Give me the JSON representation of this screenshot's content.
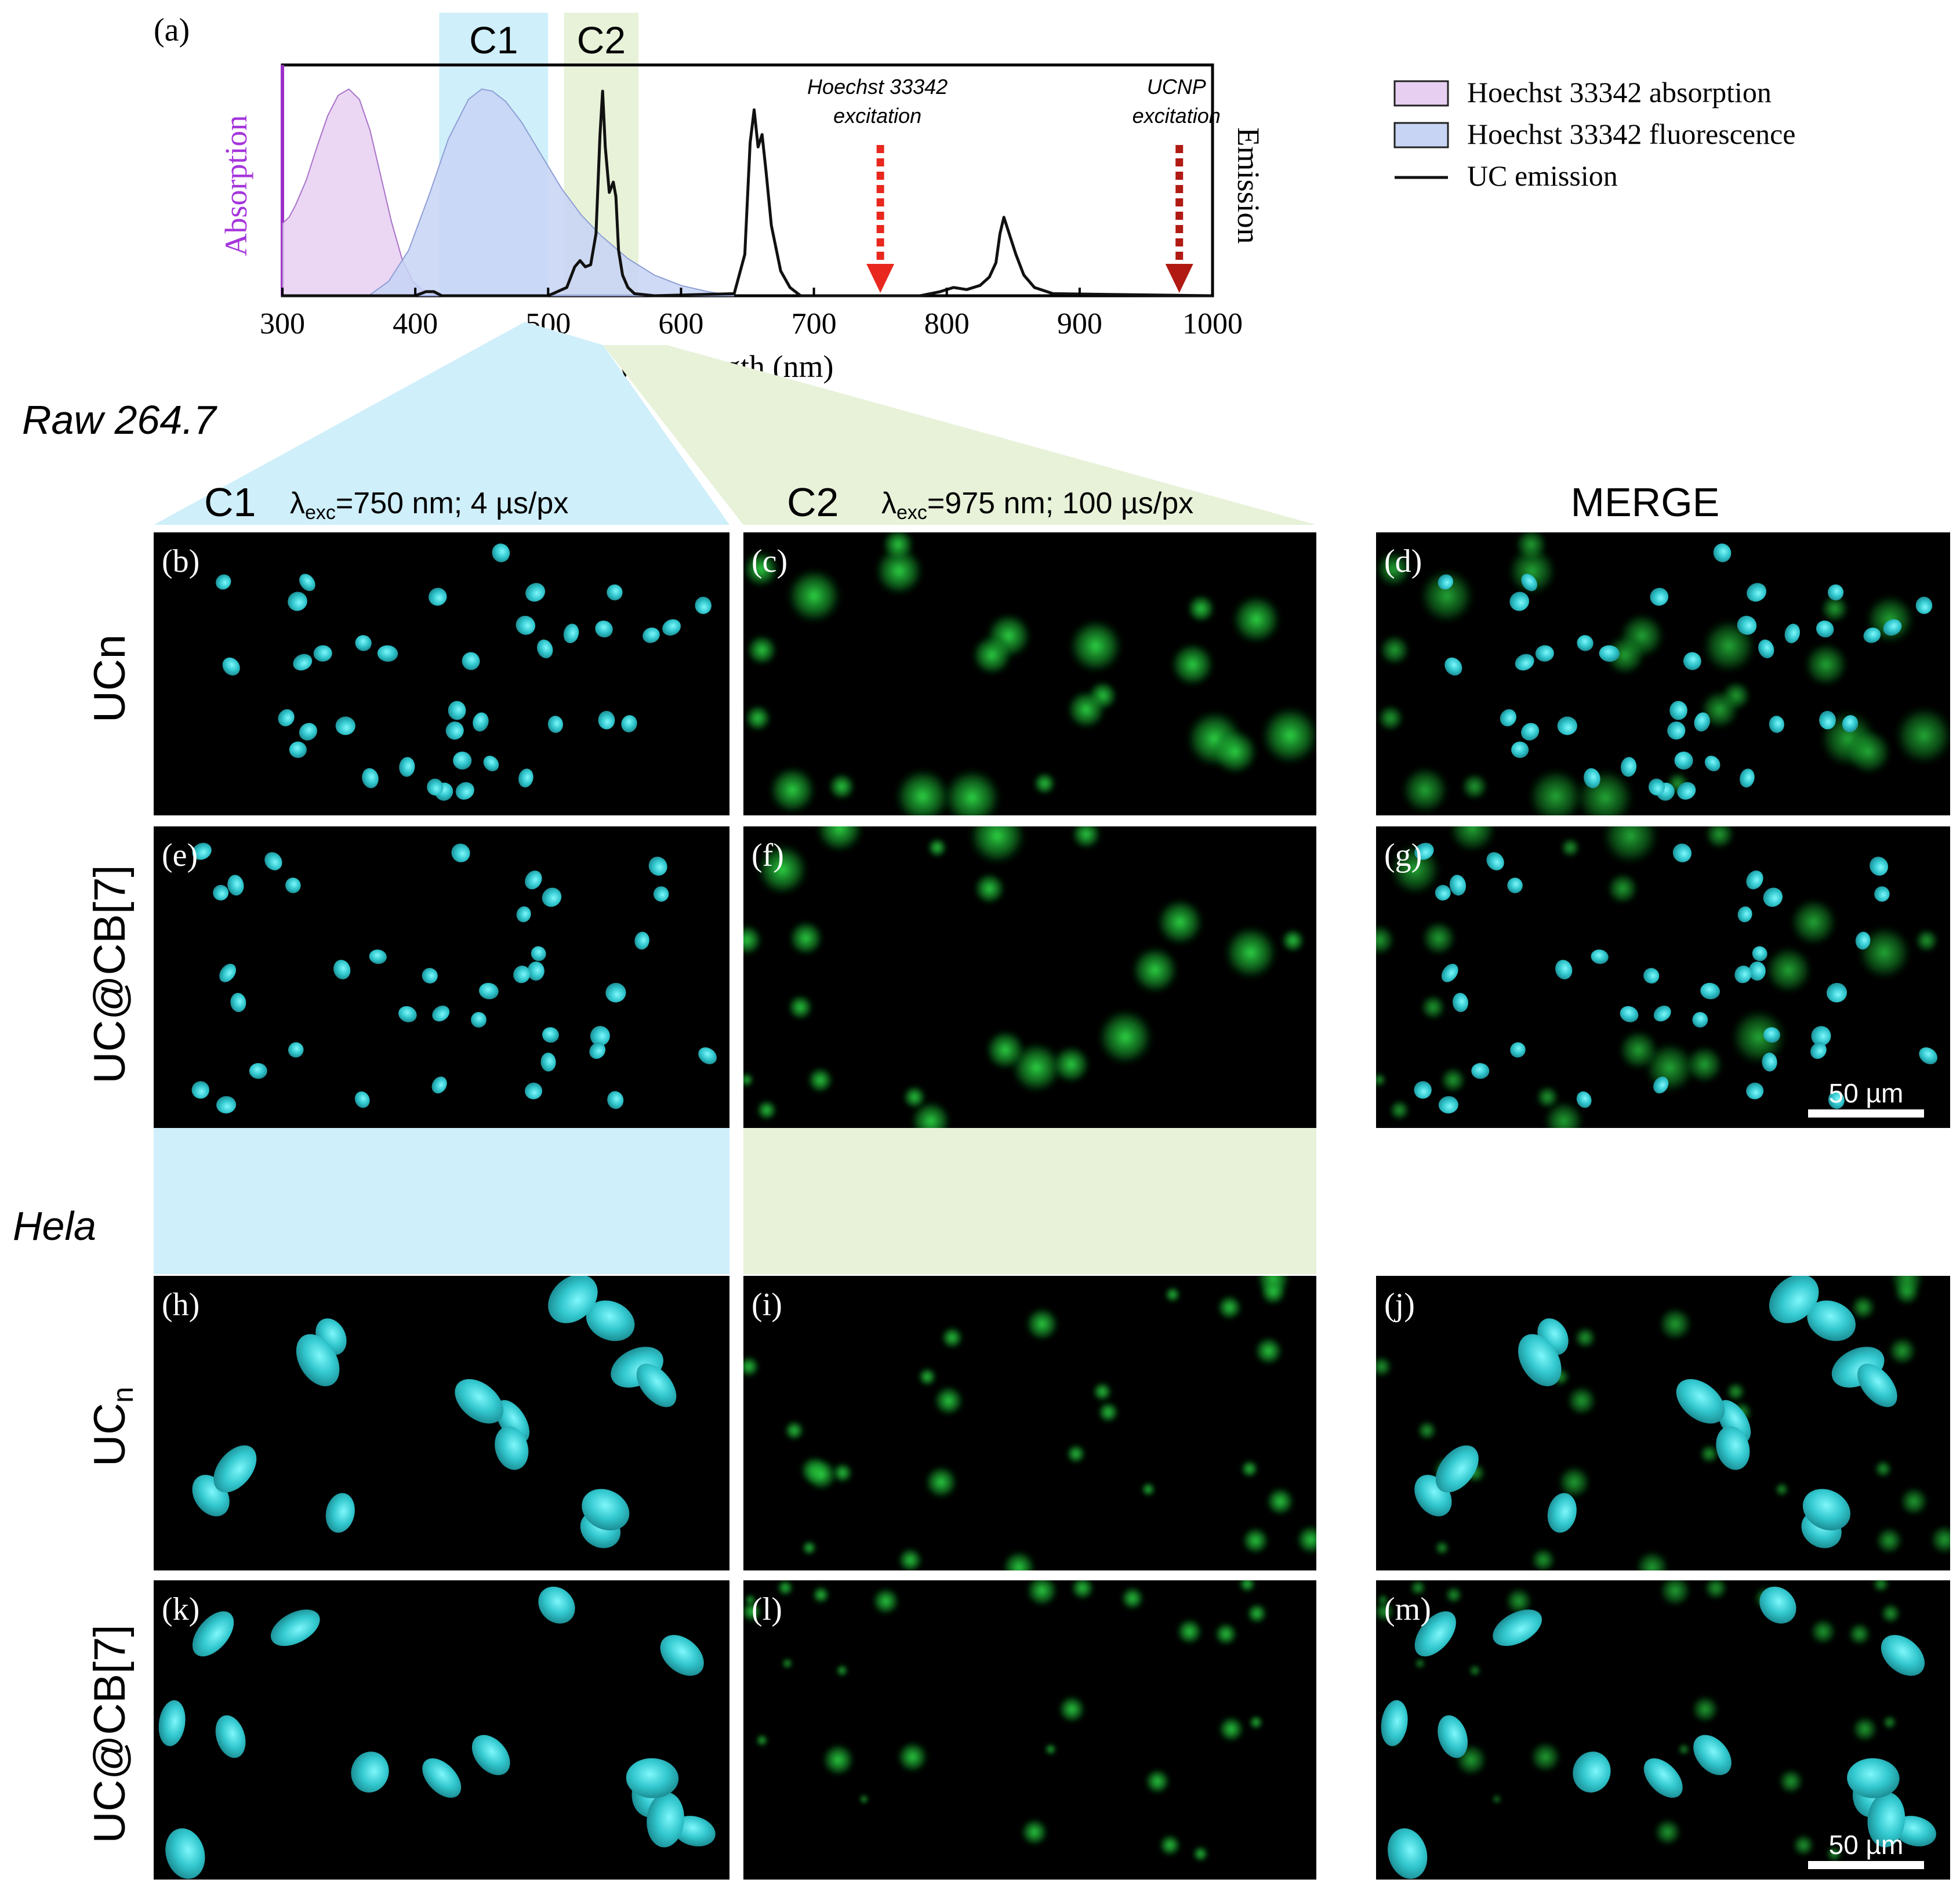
{
  "panel_a": {
    "label": "(a)",
    "chart_data": {
      "type": "area",
      "xlabel": "Wavelength (nm)",
      "ylabel_left": "Absorption",
      "ylabel_right": "Emission",
      "xlim": [
        300,
        1000
      ],
      "ylim": [
        0,
        1.1
      ],
      "xticks": [
        "300",
        "400",
        "500",
        "600",
        "700",
        "800",
        "900",
        "1000"
      ],
      "bands": [
        {
          "label": "C1",
          "x0": 418,
          "x1": 500,
          "color": "#cfeffa"
        },
        {
          "label": "C2",
          "x0": 512,
          "x1": 568,
          "color": "#e7f2d9"
        }
      ],
      "series": [
        {
          "name": "Hoechst 33342 absorption",
          "kind": "area",
          "fill": "#e7cff2",
          "stroke": "#a874c8",
          "x": [
            300,
            305,
            310,
            318,
            326,
            334,
            342,
            350,
            358,
            366,
            374,
            382,
            390,
            398,
            405,
            412,
            420
          ],
          "y": [
            0.35,
            0.38,
            0.44,
            0.56,
            0.72,
            0.87,
            0.97,
            1.0,
            0.95,
            0.8,
            0.58,
            0.36,
            0.18,
            0.07,
            0.03,
            0.01,
            0.0
          ]
        },
        {
          "name": "Hoechst 33342 fluorescence",
          "kind": "area",
          "fill": "#c7d4f4",
          "stroke": "#8f9fd4",
          "x": [
            365,
            380,
            395,
            410,
            425,
            440,
            450,
            458,
            468,
            480,
            495,
            510,
            525,
            540,
            560,
            580,
            600,
            620,
            640
          ],
          "y": [
            0.0,
            0.07,
            0.22,
            0.48,
            0.76,
            0.95,
            1.0,
            0.99,
            0.94,
            0.84,
            0.68,
            0.52,
            0.39,
            0.29,
            0.18,
            0.1,
            0.05,
            0.02,
            0.0
          ]
        },
        {
          "name": "UC emission",
          "kind": "line",
          "stroke": "#111111",
          "x": [
            300,
            400,
            408,
            414,
            420,
            500,
            514,
            520,
            524,
            528,
            532,
            536,
            539,
            541,
            543,
            546,
            549,
            551,
            553,
            556,
            560,
            565,
            580,
            640,
            648,
            652,
            655,
            658,
            661,
            664,
            668,
            675,
            682,
            690,
            780,
            795,
            805,
            815,
            825,
            832,
            837,
            840,
            843,
            847,
            852,
            858,
            866,
            880,
            1000
          ],
          "y": [
            0.0,
            0.0,
            0.02,
            0.02,
            0.0,
            0.0,
            0.04,
            0.14,
            0.17,
            0.14,
            0.15,
            0.3,
            0.78,
            0.99,
            0.72,
            0.5,
            0.55,
            0.48,
            0.22,
            0.1,
            0.04,
            0.01,
            0.0,
            0.01,
            0.2,
            0.74,
            0.9,
            0.72,
            0.78,
            0.6,
            0.34,
            0.12,
            0.04,
            0.0,
            0.0,
            0.02,
            0.04,
            0.03,
            0.05,
            0.09,
            0.16,
            0.3,
            0.38,
            0.3,
            0.2,
            0.1,
            0.04,
            0.01,
            0.0
          ]
        }
      ],
      "annotations": [
        {
          "lines": [
            "Hoechst 33342",
            "excitation"
          ],
          "x": 750,
          "color": "#e8281e"
        },
        {
          "lines": [
            "UCNP",
            "excitation"
          ],
          "x": 975,
          "color": "#b01a12"
        }
      ],
      "legend": {
        "placement": "right",
        "entries": [
          {
            "label": "Hoechst 33342 absorption",
            "kind": "box",
            "fill": "#e7cff2"
          },
          {
            "label": "Hoechst 33342 fluorescence",
            "kind": "box",
            "fill": "#c7d4f4"
          },
          {
            "label": "UC emission",
            "kind": "line",
            "stroke": "#111111"
          }
        ]
      }
    }
  },
  "sections": [
    {
      "title": "Raw 264.7"
    },
    {
      "title": "Hela"
    }
  ],
  "columns": [
    {
      "title": "C1",
      "subtitle_prefix": "λ",
      "subtitle_sub": "exc",
      "subtitle_suffix": "=750 nm; 4 µs/px"
    },
    {
      "title": "C2",
      "subtitle_prefix": "λ",
      "subtitle_sub": "exc",
      "subtitle_suffix": "=975 nm; 100 µs/px"
    },
    {
      "title": "MERGE"
    }
  ],
  "rows": [
    {
      "label_main": "UCn",
      "label_sub": "",
      "panels": [
        "(b)",
        "(c)",
        "(d)"
      ]
    },
    {
      "label_main": "UC@CB[7]",
      "label_sub": "",
      "panels": [
        "(e)",
        "(f)",
        "(g)"
      ]
    },
    {
      "label_main": "UC",
      "label_sub": "n",
      "panels": [
        "(h)",
        "(i)",
        "(j)"
      ]
    },
    {
      "label_main": "UC@CB[7]",
      "label_sub": "",
      "panels": [
        "(k)",
        "(l)",
        "(m)"
      ]
    }
  ],
  "scalebars": [
    "50 µm",
    "50 µm"
  ],
  "colors": {
    "cyan": "#2ad6dc",
    "green": "#1fd43c",
    "c1_band": "#cfeffa",
    "c2_band": "#e7f2d9"
  }
}
